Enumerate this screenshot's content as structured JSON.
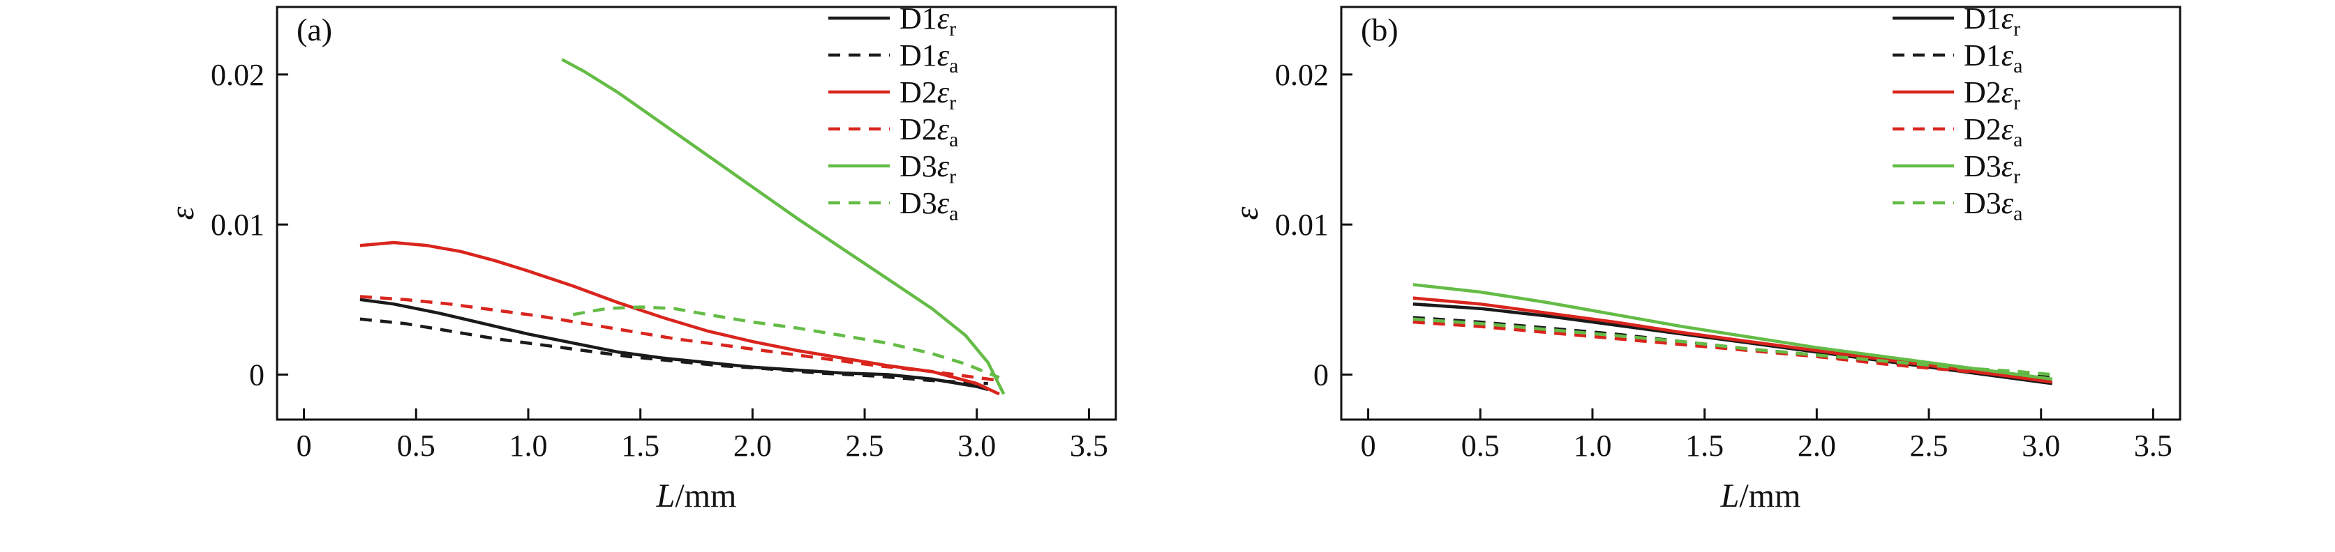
{
  "page": {
    "background": "#ffffff"
  },
  "chart_data": [
    {
      "type": "line",
      "title": "(a)",
      "xlabel_italic": "L",
      "xlabel_rest": "/mm",
      "ylabel": "ε",
      "xlim": [
        -0.12,
        3.62
      ],
      "ylim": [
        -0.003,
        0.0245
      ],
      "xticks": [
        0,
        0.5,
        1.0,
        1.5,
        2.0,
        2.5,
        3.0,
        3.5
      ],
      "xtick_labels": [
        "0",
        "0.5",
        "1.0",
        "1.5",
        "2.0",
        "2.5",
        "3.0",
        "3.5"
      ],
      "yticks": [
        0,
        0.01,
        0.02
      ],
      "ytick_labels": [
        "0",
        "0.01",
        "0.02"
      ],
      "grid": false,
      "legend_position": "top-right",
      "series": [
        {
          "name": "D1",
          "symbol": "ε",
          "sub": "r",
          "color": "#1a1a1a",
          "dash": "solid",
          "points": [
            [
              0.25,
              0.005
            ],
            [
              0.4,
              0.0047
            ],
            [
              0.6,
              0.0041
            ],
            [
              0.8,
              0.0034
            ],
            [
              1.0,
              0.0027
            ],
            [
              1.2,
              0.0021
            ],
            [
              1.4,
              0.0015
            ],
            [
              1.6,
              0.0011
            ],
            [
              1.8,
              0.0008
            ],
            [
              2.0,
              0.0005
            ],
            [
              2.2,
              0.0003
            ],
            [
              2.4,
              0.0001
            ],
            [
              2.6,
              0.0
            ],
            [
              2.8,
              -0.0003
            ],
            [
              3.0,
              -0.0008
            ],
            [
              3.05,
              -0.001
            ]
          ]
        },
        {
          "name": "D1",
          "symbol": "ε",
          "sub": "a",
          "color": "#1a1a1a",
          "dash": "dashed",
          "points": [
            [
              0.25,
              0.0037
            ],
            [
              0.45,
              0.0034
            ],
            [
              0.65,
              0.0029
            ],
            [
              0.85,
              0.0024
            ],
            [
              1.05,
              0.002
            ],
            [
              1.25,
              0.0016
            ],
            [
              1.45,
              0.0012
            ],
            [
              1.65,
              0.0009
            ],
            [
              1.85,
              0.0006
            ],
            [
              2.05,
              0.0004
            ],
            [
              2.3,
              0.0001
            ],
            [
              2.55,
              -0.0001
            ],
            [
              2.8,
              -0.0004
            ],
            [
              3.05,
              -0.0006
            ]
          ]
        },
        {
          "name": "D2",
          "symbol": "ε",
          "sub": "r",
          "color": "#d9251d",
          "dash": "solid",
          "points": [
            [
              0.25,
              0.0086
            ],
            [
              0.4,
              0.0088
            ],
            [
              0.55,
              0.0086
            ],
            [
              0.7,
              0.0082
            ],
            [
              0.85,
              0.0076
            ],
            [
              1.0,
              0.0069
            ],
            [
              1.2,
              0.0059
            ],
            [
              1.4,
              0.0048
            ],
            [
              1.6,
              0.0038
            ],
            [
              1.8,
              0.0029
            ],
            [
              2.0,
              0.0022
            ],
            [
              2.2,
              0.0016
            ],
            [
              2.4,
              0.0011
            ],
            [
              2.6,
              0.0006
            ],
            [
              2.8,
              0.0002
            ],
            [
              3.0,
              -0.0006
            ],
            [
              3.1,
              -0.0013
            ]
          ]
        },
        {
          "name": "D2",
          "symbol": "ε",
          "sub": "a",
          "color": "#d9251d",
          "dash": "dashed",
          "points": [
            [
              0.25,
              0.0052
            ],
            [
              0.45,
              0.005
            ],
            [
              0.65,
              0.0047
            ],
            [
              0.85,
              0.0043
            ],
            [
              1.05,
              0.0039
            ],
            [
              1.25,
              0.0034
            ],
            [
              1.45,
              0.0029
            ],
            [
              1.65,
              0.0024
            ],
            [
              1.85,
              0.002
            ],
            [
              2.05,
              0.0016
            ],
            [
              2.3,
              0.0011
            ],
            [
              2.55,
              0.0006
            ],
            [
              2.8,
              0.0002
            ],
            [
              3.0,
              -0.0002
            ],
            [
              3.1,
              -0.0004
            ]
          ]
        },
        {
          "name": "D3",
          "symbol": "ε",
          "sub": "r",
          "color": "#64bc46",
          "dash": "solid",
          "points": [
            [
              1.15,
              0.021
            ],
            [
              1.25,
              0.0202
            ],
            [
              1.4,
              0.0188
            ],
            [
              1.6,
              0.0167
            ],
            [
              1.8,
              0.0146
            ],
            [
              2.0,
              0.0125
            ],
            [
              2.2,
              0.0104
            ],
            [
              2.4,
              0.0084
            ],
            [
              2.6,
              0.0064
            ],
            [
              2.8,
              0.0044
            ],
            [
              2.95,
              0.0026
            ],
            [
              3.05,
              0.0008
            ],
            [
              3.12,
              -0.0013
            ]
          ]
        },
        {
          "name": "D3",
          "symbol": "ε",
          "sub": "a",
          "color": "#64bc46",
          "dash": "dashed",
          "points": [
            [
              1.2,
              0.004
            ],
            [
              1.35,
              0.0044
            ],
            [
              1.5,
              0.0045
            ],
            [
              1.65,
              0.0044
            ],
            [
              1.8,
              0.004
            ],
            [
              2.0,
              0.0035
            ],
            [
              2.2,
              0.0031
            ],
            [
              2.4,
              0.0026
            ],
            [
              2.6,
              0.0021
            ],
            [
              2.8,
              0.0014
            ],
            [
              2.95,
              0.0007
            ],
            [
              3.1,
              -0.0002
            ]
          ]
        }
      ]
    },
    {
      "type": "line",
      "title": "(b)",
      "xlabel_italic": "L",
      "xlabel_rest": "/mm",
      "ylabel": "ε",
      "xlim": [
        -0.12,
        3.62
      ],
      "ylim": [
        -0.003,
        0.0245
      ],
      "xticks": [
        0,
        0.5,
        1.0,
        1.5,
        2.0,
        2.5,
        3.0,
        3.5
      ],
      "xtick_labels": [
        "0",
        "0.5",
        "1.0",
        "1.5",
        "2.0",
        "2.5",
        "3.0",
        "3.5"
      ],
      "yticks": [
        0,
        0.01,
        0.02
      ],
      "ytick_labels": [
        "0",
        "0.01",
        "0.02"
      ],
      "grid": false,
      "legend_position": "top-right",
      "series": [
        {
          "name": "D1",
          "symbol": "ε",
          "sub": "r",
          "color": "#1a1a1a",
          "dash": "solid",
          "points": [
            [
              0.2,
              0.0047
            ],
            [
              0.5,
              0.0044
            ],
            [
              0.8,
              0.0039
            ],
            [
              1.1,
              0.0033
            ],
            [
              1.4,
              0.0027
            ],
            [
              1.7,
              0.0021
            ],
            [
              2.0,
              0.0015
            ],
            [
              2.3,
              0.0009
            ],
            [
              2.6,
              0.0003
            ],
            [
              2.9,
              -0.0003
            ],
            [
              3.05,
              -0.0006
            ]
          ]
        },
        {
          "name": "D1",
          "symbol": "ε",
          "sub": "a",
          "color": "#1a1a1a",
          "dash": "dashed",
          "points": [
            [
              0.2,
              0.0038
            ],
            [
              0.5,
              0.0035
            ],
            [
              0.8,
              0.0031
            ],
            [
              1.1,
              0.0027
            ],
            [
              1.4,
              0.0022
            ],
            [
              1.7,
              0.0017
            ],
            [
              2.0,
              0.0013
            ],
            [
              2.3,
              0.0008
            ],
            [
              2.6,
              0.0004
            ],
            [
              2.9,
              0.0
            ],
            [
              3.05,
              -0.0002
            ]
          ]
        },
        {
          "name": "D2",
          "symbol": "ε",
          "sub": "r",
          "color": "#d9251d",
          "dash": "solid",
          "points": [
            [
              0.2,
              0.0051
            ],
            [
              0.5,
              0.0047
            ],
            [
              0.8,
              0.0041
            ],
            [
              1.1,
              0.0035
            ],
            [
              1.4,
              0.0028
            ],
            [
              1.7,
              0.0022
            ],
            [
              2.0,
              0.0016
            ],
            [
              2.3,
              0.001
            ],
            [
              2.6,
              0.0004
            ],
            [
              2.9,
              -0.0002
            ],
            [
              3.05,
              -0.0005
            ]
          ]
        },
        {
          "name": "D2",
          "symbol": "ε",
          "sub": "a",
          "color": "#d9251d",
          "dash": "dashed",
          "points": [
            [
              0.2,
              0.0035
            ],
            [
              0.5,
              0.0032
            ],
            [
              0.8,
              0.0028
            ],
            [
              1.1,
              0.0024
            ],
            [
              1.4,
              0.002
            ],
            [
              1.7,
              0.0016
            ],
            [
              2.0,
              0.0012
            ],
            [
              2.3,
              0.0007
            ],
            [
              2.6,
              0.0003
            ],
            [
              2.9,
              -0.0001
            ],
            [
              3.05,
              -0.0003
            ]
          ]
        },
        {
          "name": "D3",
          "symbol": "ε",
          "sub": "r",
          "color": "#64bc46",
          "dash": "solid",
          "points": [
            [
              0.2,
              0.006
            ],
            [
              0.5,
              0.0055
            ],
            [
              0.8,
              0.0048
            ],
            [
              1.1,
              0.004
            ],
            [
              1.4,
              0.0032
            ],
            [
              1.7,
              0.0025
            ],
            [
              2.0,
              0.0018
            ],
            [
              2.3,
              0.0012
            ],
            [
              2.6,
              0.0006
            ],
            [
              2.9,
              0.0
            ],
            [
              3.05,
              -0.0003
            ]
          ]
        },
        {
          "name": "D3",
          "symbol": "ε",
          "sub": "a",
          "color": "#64bc46",
          "dash": "dashed",
          "points": [
            [
              0.2,
              0.0037
            ],
            [
              0.5,
              0.0034
            ],
            [
              0.8,
              0.003
            ],
            [
              1.1,
              0.0026
            ],
            [
              1.4,
              0.0022
            ],
            [
              1.7,
              0.0017
            ],
            [
              2.0,
              0.0013
            ],
            [
              2.3,
              0.0009
            ],
            [
              2.6,
              0.0005
            ],
            [
              2.9,
              0.0002
            ],
            [
              3.05,
              0.0
            ]
          ]
        }
      ]
    }
  ]
}
